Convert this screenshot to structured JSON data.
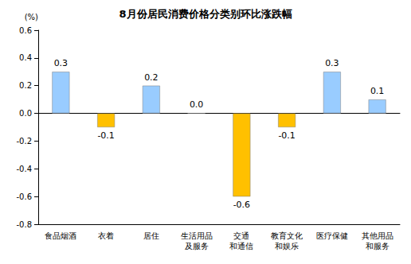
{
  "chart_data": {
    "type": "bar",
    "title": "8月份居民消费价格分类别环比涨跌幅",
    "ylabel": "(%)",
    "categories": [
      "食品烟酒",
      "衣着",
      "居住",
      "生活用品\n及服务",
      "交通\n和通信",
      "教育文化\n和娱乐",
      "医疗保健",
      "其他用品\n和服务"
    ],
    "values": [
      0.3,
      -0.1,
      0.2,
      0.0,
      -0.6,
      -0.1,
      0.3,
      0.1
    ],
    "value_labels": [
      "0.3",
      "-0.1",
      "0.2",
      "0.0",
      "-0.6",
      "-0.1",
      "0.3",
      "0.1"
    ],
    "colors": [
      "#99ccff",
      "#ffc000",
      "#99ccff",
      "#99ccff",
      "#ffc000",
      "#ffc000",
      "#99ccff",
      "#99ccff"
    ],
    "ylim": [
      -0.8,
      0.6
    ],
    "yticks": [
      -0.8,
      -0.6,
      -0.4,
      -0.2,
      {
        "value": 0,
        "label": "0.0"
      },
      0.2,
      0.4,
      0.6
    ],
    "grid": false,
    "data_labels": true
  }
}
